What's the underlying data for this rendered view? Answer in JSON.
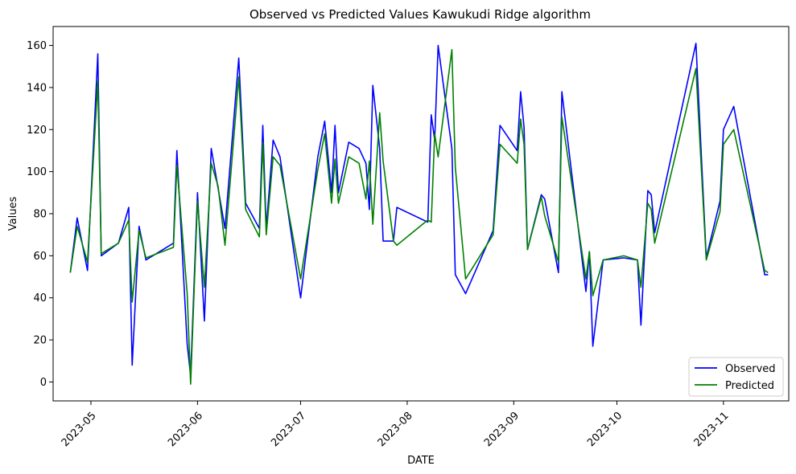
{
  "chart_data": {
    "type": "line",
    "title": "Observed vs Predicted Values Kawukudi Ridge algorithm",
    "xlabel": "DATE",
    "ylabel": "Values",
    "xlim": [
      "2023-04-20",
      "2023-11-20"
    ],
    "ylim": [
      -9,
      169
    ],
    "x_ticks": [
      "2023-05",
      "2023-06",
      "2023-07",
      "2023-08",
      "2023-09",
      "2023-10",
      "2023-11"
    ],
    "y_ticks": [
      0,
      20,
      40,
      60,
      80,
      100,
      120,
      140,
      160
    ],
    "grid": false,
    "legend_position": "lower right",
    "x": [
      "2023-04-25",
      "2023-04-27",
      "2023-04-30",
      "2023-05-03",
      "2023-05-04",
      "2023-05-09",
      "2023-05-12",
      "2023-05-13",
      "2023-05-15",
      "2023-05-17",
      "2023-05-25",
      "2023-05-26",
      "2023-05-29",
      "2023-05-30",
      "2023-06-01",
      "2023-06-03",
      "2023-06-05",
      "2023-06-07",
      "2023-06-09",
      "2023-06-13",
      "2023-06-15",
      "2023-06-19",
      "2023-06-20",
      "2023-06-21",
      "2023-06-23",
      "2023-06-25",
      "2023-07-01",
      "2023-07-06",
      "2023-07-08",
      "2023-07-10",
      "2023-07-11",
      "2023-07-12",
      "2023-07-15",
      "2023-07-18",
      "2023-07-20",
      "2023-07-21",
      "2023-07-22",
      "2023-07-24",
      "2023-07-25",
      "2023-07-28",
      "2023-07-29",
      "2023-08-07",
      "2023-08-08",
      "2023-08-09",
      "2023-08-10",
      "2023-08-14",
      "2023-08-15",
      "2023-08-18",
      "2023-08-26",
      "2023-08-28",
      "2023-09-02",
      "2023-09-03",
      "2023-09-04",
      "2023-09-05",
      "2023-09-09",
      "2023-09-10",
      "2023-09-14",
      "2023-09-15",
      "2023-09-22",
      "2023-09-23",
      "2023-09-24",
      "2023-09-27",
      "2023-10-03",
      "2023-10-07",
      "2023-10-08",
      "2023-10-10",
      "2023-10-11",
      "2023-10-12",
      "2023-10-24",
      "2023-10-27",
      "2023-10-31",
      "2023-11-01",
      "2023-11-04",
      "2023-11-13",
      "2023-11-14"
    ],
    "series": [
      {
        "name": "Observed",
        "color": "#0000ff",
        "values": [
          52,
          78,
          53,
          156,
          60,
          66,
          83,
          8,
          74,
          58,
          66,
          110,
          18,
          3,
          90,
          29,
          111,
          92,
          73,
          154,
          85,
          73,
          122,
          73,
          115,
          107,
          40,
          107,
          124,
          90,
          122,
          90,
          114,
          111,
          104,
          82,
          141,
          111,
          67,
          67,
          83,
          76,
          127,
          115,
          160,
          111,
          51,
          42,
          72,
          122,
          110,
          138,
          121,
          63,
          89,
          87,
          52,
          138,
          43,
          62,
          17,
          58,
          59,
          58,
          27,
          91,
          89,
          71,
          161,
          59,
          86,
          120,
          131,
          51,
          51
        ],
        "value_notes": "dates and values read from rendered line shape"
      },
      {
        "name": "Predicted",
        "color": "#008000",
        "values": [
          52,
          74,
          57,
          143,
          61,
          66,
          77,
          38,
          72,
          59,
          64,
          103,
          42,
          -1,
          86,
          45,
          104,
          93,
          65,
          145,
          82,
          69,
          114,
          70,
          107,
          103,
          49,
          101,
          118,
          85,
          106,
          85,
          107,
          104,
          87,
          105,
          75,
          128,
          105,
          67,
          65,
          77,
          76,
          118,
          107,
          158,
          102,
          49,
          70,
          113,
          104,
          125,
          113,
          63,
          88,
          79,
          57,
          126,
          49,
          62,
          41,
          58,
          60,
          58,
          45,
          85,
          82,
          66,
          149,
          58,
          81,
          113,
          120,
          53,
          52
        ],
        "value_notes": "dates and values read from rendered line shape"
      }
    ]
  }
}
